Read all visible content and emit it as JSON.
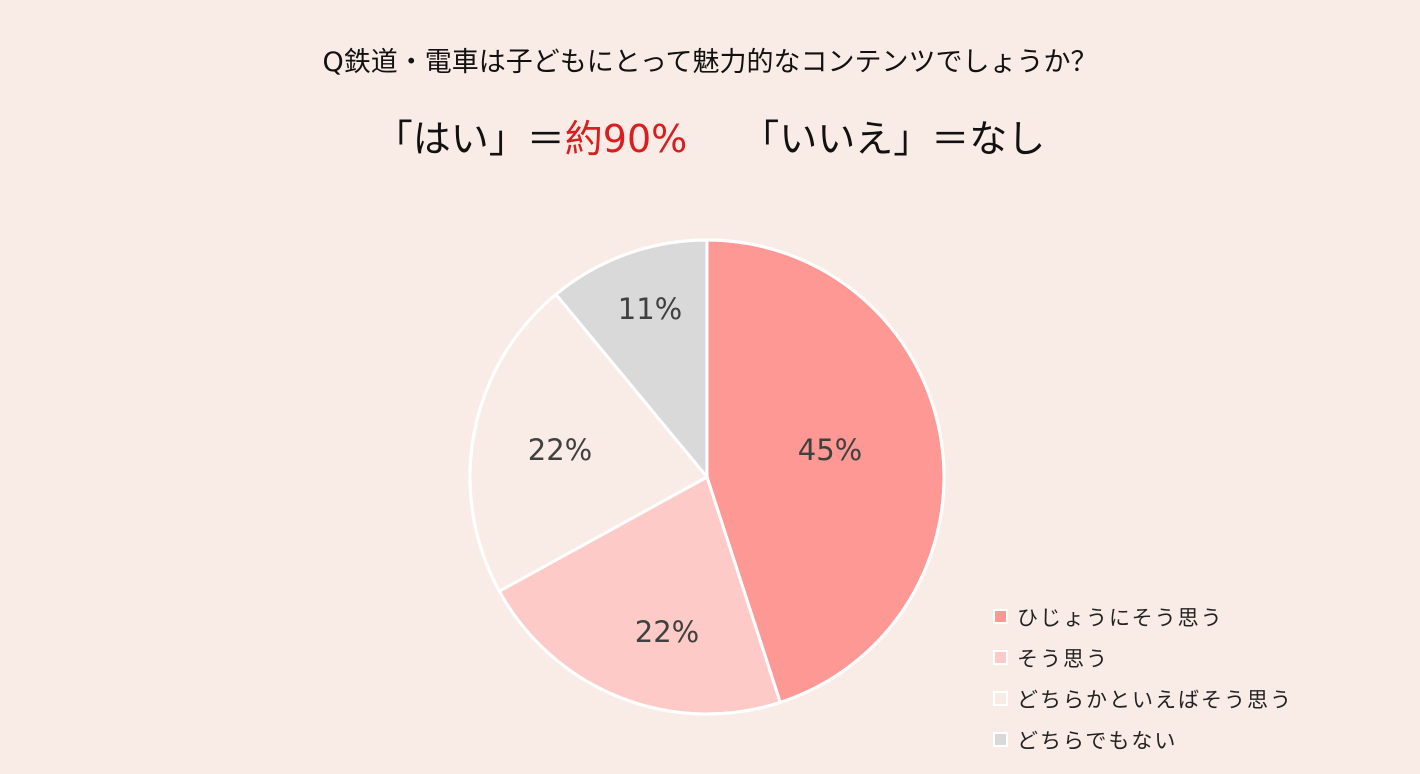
{
  "title": {
    "question": "Q鉄道・電車は子どもにとって魅力的なコンテンツでしょうか？",
    "yes_label": "「はい」＝",
    "yes_value": "約90%",
    "no_label": "「いいえ」＝なし"
  },
  "colors": {
    "background": "#f9ece7",
    "accent_red": "#d81e1e",
    "slice_very": "#fe9894",
    "slice_agree": "#fecac8",
    "slice_somewhat": "#f9ece7",
    "slice_neutral": "#d9d9d9"
  },
  "chart_data": {
    "type": "pie",
    "title": "Q鉄道・電車は子どもにとって魅力的なコンテンツでしょうか？",
    "categories": [
      "ひじょうにそう思う",
      "そう思う",
      "どちらかといえばそう思う",
      "どちらでもない"
    ],
    "values": [
      45,
      22,
      22,
      11
    ],
    "labels": [
      "45%",
      "22%",
      "22%",
      "11%"
    ],
    "colors": [
      "#fe9894",
      "#fecac8",
      "#f9ece7",
      "#d9d9d9"
    ],
    "start_angle": "12 o'clock, clockwise",
    "legend_position": "bottom-right"
  },
  "legend": [
    {
      "label": "ひじょうにそう思う",
      "color": "#fe9894"
    },
    {
      "label": "そう思う",
      "color": "#fecac8"
    },
    {
      "label": "どちらかといえばそう思う",
      "color": "#f9ece7"
    },
    {
      "label": "どちらでもない",
      "color": "#d9d9d9"
    }
  ]
}
